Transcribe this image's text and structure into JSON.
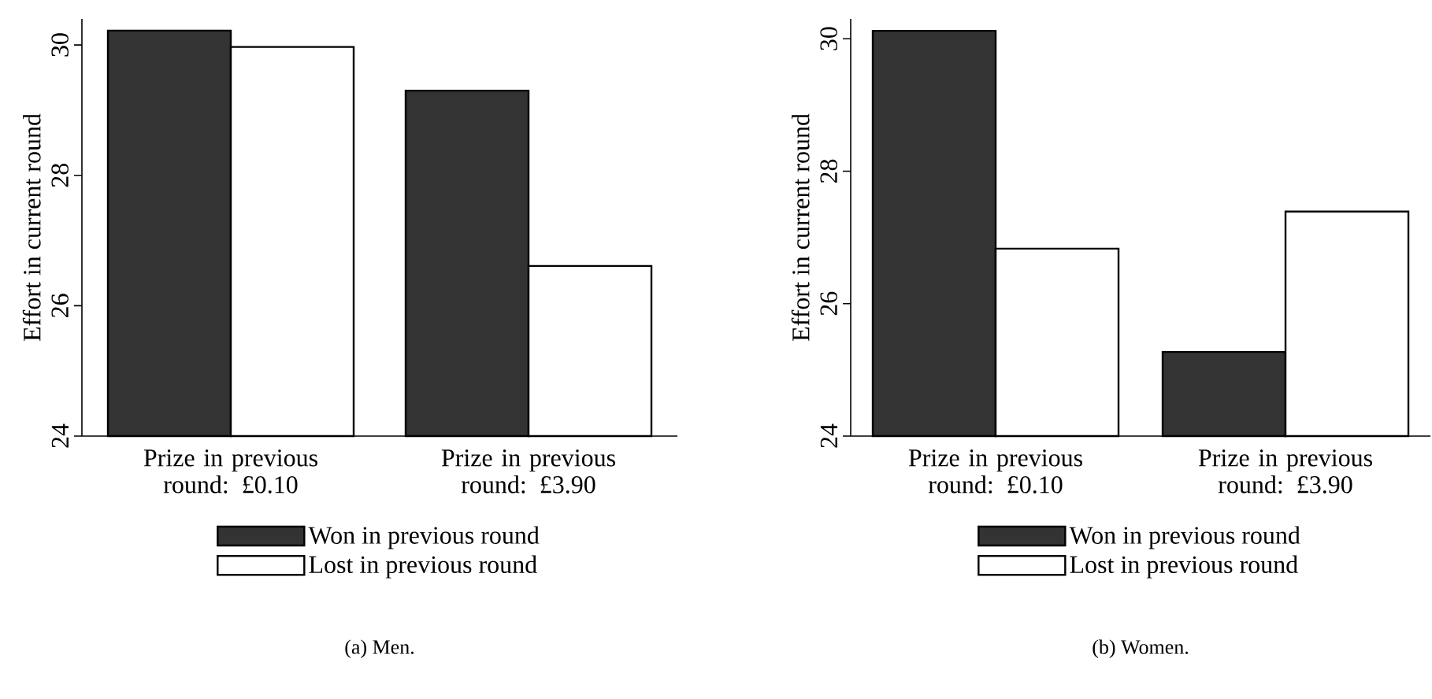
{
  "chart_data": [
    {
      "type": "bar",
      "categories": [
        "Prize in previous round: £0.10",
        "Prize in previous round: £3.90"
      ],
      "ylabel": "Effort in current round",
      "ylim": [
        24,
        30.4
      ],
      "yticks": [
        24,
        26,
        28,
        30
      ],
      "grid": false,
      "legend": "bottom",
      "annotations": [
        "(a) Men."
      ],
      "series": [
        {
          "name": "Won in previous round",
          "color": "#333333",
          "values": [
            30.22,
            29.3
          ]
        },
        {
          "name": "Lost in previous round",
          "color": "#ffffff",
          "values": [
            29.97,
            26.61
          ]
        }
      ]
    },
    {
      "type": "bar",
      "categories": [
        "Prize in previous round: £0.10",
        "Prize in previous round: £3.90"
      ],
      "ylabel": "Effort in current round",
      "ylim": [
        24,
        30.3
      ],
      "yticks": [
        24,
        26,
        28,
        30
      ],
      "grid": false,
      "legend": "bottom",
      "annotations": [
        "(b) Women."
      ],
      "series": [
        {
          "name": "Won in previous round",
          "color": "#333333",
          "values": [
            30.12,
            25.27
          ]
        },
        {
          "name": "Lost in previous round",
          "color": "#ffffff",
          "values": [
            26.83,
            27.39
          ]
        }
      ]
    }
  ]
}
